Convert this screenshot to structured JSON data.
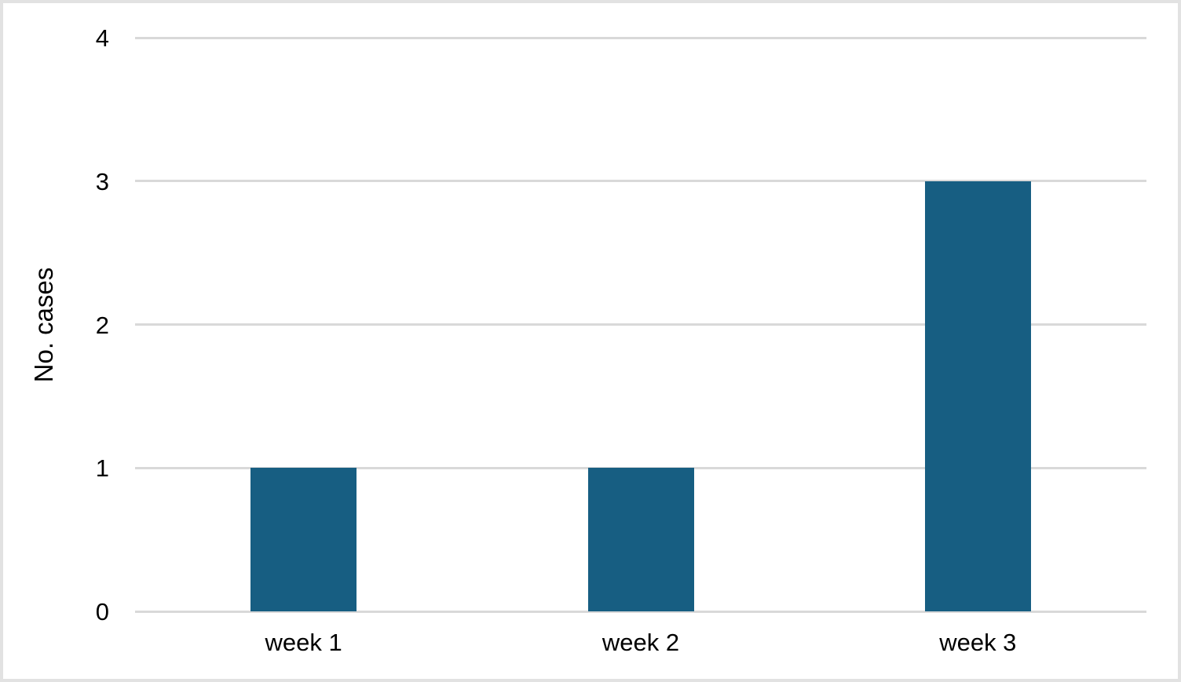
{
  "chart_data": {
    "type": "bar",
    "title": "",
    "categories": [
      "week 1",
      "week 2",
      "week 3"
    ],
    "values": [
      1,
      1,
      3
    ],
    "xlabel": "",
    "ylabel": "No. cases",
    "ylim": [
      0,
      4
    ],
    "ytick_step": 1,
    "ytick_labels": [
      "0",
      "1",
      "2",
      "3",
      "4"
    ],
    "grid": true,
    "legend": false,
    "bar_color": "#175e82",
    "gridline_color": "#d9d9d9",
    "background_color": "#ffffff",
    "frame_color": "#e2e2e2"
  }
}
